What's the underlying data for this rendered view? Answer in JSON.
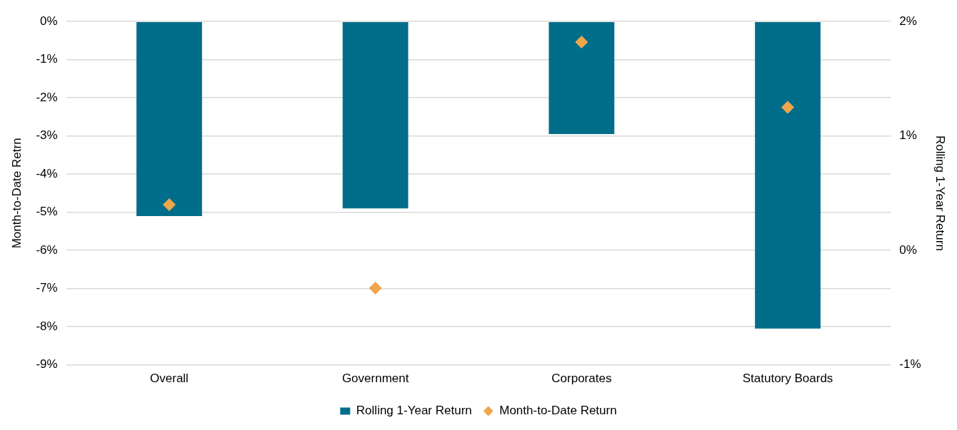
{
  "chart_data": {
    "type": "bar",
    "categories": [
      "Overall",
      "Government",
      "Corporates",
      "Statutory Boards"
    ],
    "ylabel": "Month-to-Date Retrn",
    "y2label": "Rolling 1-Year Return",
    "series": [
      {
        "name": "Rolling 1-Year Return",
        "color": "#006e8a",
        "values": [
          -5.1,
          -4.9,
          -2.95,
          -8.05
        ]
      },
      {
        "name": "Month-to-Date Return",
        "type": "scatter",
        "axis": "y2",
        "color": "#f0a54a",
        "values": [
          0.4,
          -0.33,
          1.82,
          1.25
        ]
      }
    ],
    "ylim": [
      -9,
      0
    ],
    "yticks": [
      {
        "value": 0,
        "label": "0%"
      },
      {
        "value": -1,
        "label": "-1%"
      },
      {
        "value": -2,
        "label": "-2%"
      },
      {
        "value": -3,
        "label": "-3%"
      },
      {
        "value": -4,
        "label": "-4%"
      },
      {
        "value": -5,
        "label": "-5%"
      },
      {
        "value": -6,
        "label": "-6%"
      },
      {
        "value": -7,
        "label": "-7%"
      },
      {
        "value": -8,
        "label": "-8%"
      },
      {
        "value": -9,
        "label": "-9%"
      }
    ],
    "y2lim": [
      -1,
      2
    ],
    "y2ticks": [
      {
        "value": 2,
        "label": "2%"
      },
      {
        "value": 1,
        "label": "1%"
      },
      {
        "value": 0,
        "label": "0%"
      },
      {
        "value": -1,
        "label": "-1%"
      }
    ],
    "grid": "y",
    "legend": "bottom",
    "marker": "diamond"
  }
}
